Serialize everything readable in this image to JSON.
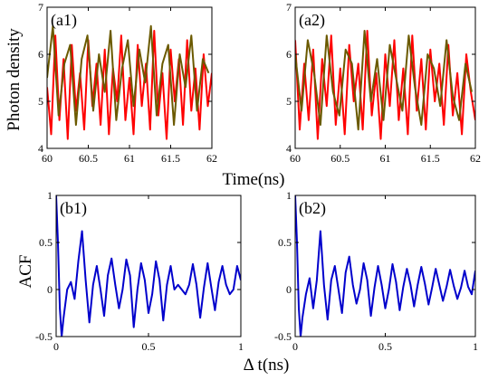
{
  "chart_data": [
    {
      "panel": "(a1)",
      "type": "line",
      "ylabel": "Photon density",
      "xlabel": "Time(ns)",
      "xlim": [
        60,
        62
      ],
      "ylim": [
        4,
        7
      ],
      "xticks": [
        60,
        60.5,
        61,
        61.5,
        62
      ],
      "xtick_labels": [
        "60",
        "60.5",
        "61",
        "61.5",
        "62"
      ],
      "yticks": [
        4,
        5,
        6,
        7
      ],
      "ytick_labels": [
        "4",
        "5",
        "6",
        "7"
      ],
      "series": [
        {
          "color": "#ff0000",
          "x": [
            60.0,
            60.05,
            60.1,
            60.15,
            60.2,
            60.25,
            60.3,
            60.35,
            60.4,
            60.45,
            60.5,
            60.55,
            60.6,
            60.65,
            60.7,
            60.75,
            60.8,
            60.85,
            60.9,
            60.95,
            61.0,
            61.05,
            61.1,
            61.15,
            61.2,
            61.25,
            61.3,
            61.35,
            61.4,
            61.45,
            61.5,
            61.55,
            61.6,
            61.65,
            61.7,
            61.75,
            61.8,
            61.85,
            61.9,
            61.95,
            62.0
          ],
          "y": [
            5.3,
            4.3,
            6.4,
            4.6,
            5.9,
            4.2,
            6.2,
            4.8,
            5.6,
            4.4,
            6.3,
            4.9,
            5.8,
            4.5,
            6.1,
            4.3,
            5.7,
            5.0,
            6.4,
            4.6,
            5.5,
            4.3,
            6.2,
            4.9,
            5.8,
            4.4,
            6.5,
            4.7,
            5.6,
            4.2,
            6.1,
            5.0,
            5.9,
            4.5,
            6.3,
            4.8,
            5.7,
            4.4,
            6.0,
            4.9,
            5.6
          ]
        },
        {
          "color": "#6b5a00",
          "x": [
            60.0,
            60.07,
            60.14,
            60.21,
            60.28,
            60.35,
            60.42,
            60.49,
            60.56,
            60.63,
            60.7,
            60.77,
            60.84,
            60.91,
            60.98,
            61.05,
            61.12,
            61.19,
            61.26,
            61.33,
            61.4,
            61.47,
            61.54,
            61.61,
            61.68,
            61.75,
            61.82,
            61.89,
            61.96
          ],
          "y": [
            5.5,
            6.6,
            4.7,
            5.8,
            6.2,
            4.5,
            5.9,
            6.4,
            4.8,
            6.0,
            5.2,
            6.5,
            4.6,
            5.7,
            6.3,
            4.9,
            6.1,
            5.4,
            6.6,
            4.7,
            5.8,
            6.2,
            4.5,
            6.0,
            5.3,
            6.4,
            4.8,
            5.9,
            5.6
          ]
        }
      ]
    },
    {
      "panel": "(a2)",
      "type": "line",
      "xlim": [
        60,
        62
      ],
      "ylim": [
        4,
        7
      ],
      "xticks": [
        60,
        60.5,
        61,
        61.5,
        62
      ],
      "xtick_labels": [
        "60",
        "60.5",
        "61",
        "61.5",
        "62"
      ],
      "yticks": [
        4,
        5,
        6,
        7
      ],
      "ytick_labels": [
        "4",
        "5",
        "6",
        "7"
      ],
      "series": [
        {
          "color": "#ff0000",
          "x": [
            60.0,
            60.05,
            60.1,
            60.15,
            60.2,
            60.25,
            60.3,
            60.35,
            60.4,
            60.45,
            60.5,
            60.55,
            60.6,
            60.65,
            60.7,
            60.75,
            60.8,
            60.85,
            60.9,
            60.95,
            61.0,
            61.05,
            61.1,
            61.15,
            61.2,
            61.25,
            61.3,
            61.35,
            61.4,
            61.45,
            61.5,
            61.55,
            61.6,
            61.65,
            61.7,
            61.75,
            61.8,
            61.85,
            61.9,
            61.95,
            62.0
          ],
          "y": [
            6.3,
            4.4,
            5.8,
            4.6,
            6.1,
            4.2,
            5.9,
            4.9,
            6.4,
            4.5,
            5.7,
            4.3,
            6.2,
            5.0,
            5.8,
            4.4,
            6.5,
            4.7,
            5.6,
            4.2,
            6.0,
            4.9,
            6.3,
            4.6,
            5.7,
            4.3,
            6.4,
            4.8,
            5.9,
            4.4,
            6.1,
            5.0,
            5.8,
            4.5,
            6.2,
            4.7,
            5.6,
            4.3,
            6.0,
            5.2,
            4.6
          ]
        },
        {
          "color": "#6b5a00",
          "x": [
            60.0,
            60.07,
            60.14,
            60.21,
            60.28,
            60.35,
            60.42,
            60.49,
            60.56,
            60.63,
            60.7,
            60.77,
            60.84,
            60.91,
            60.98,
            61.05,
            61.12,
            61.19,
            61.26,
            61.33,
            61.4,
            61.47,
            61.54,
            61.61,
            61.68,
            61.75,
            61.82,
            61.89,
            61.96
          ],
          "y": [
            6.0,
            4.8,
            6.3,
            5.6,
            4.5,
            6.4,
            5.2,
            4.7,
            6.1,
            5.8,
            4.4,
            6.5,
            5.0,
            5.9,
            4.6,
            6.2,
            5.5,
            4.8,
            6.4,
            5.3,
            4.5,
            6.0,
            5.7,
            4.9,
            6.3,
            5.1,
            4.6,
            5.8,
            5.2
          ]
        }
      ]
    },
    {
      "panel": "(b1)",
      "type": "line",
      "ylabel": "ACF",
      "xlabel": "Δ t(ns)",
      "xlim": [
        0,
        1
      ],
      "ylim": [
        -0.5,
        1
      ],
      "xticks": [
        0,
        0.5,
        1
      ],
      "xtick_labels": [
        "0",
        "0.5",
        "1"
      ],
      "yticks": [
        -0.5,
        0,
        0.5,
        1
      ],
      "ytick_labels": [
        "-0.5",
        "0",
        "0.5",
        "1"
      ],
      "series": [
        {
          "color": "#0000cc",
          "x": [
            0.0,
            0.01,
            0.02,
            0.03,
            0.04,
            0.06,
            0.08,
            0.1,
            0.12,
            0.14,
            0.16,
            0.18,
            0.2,
            0.22,
            0.24,
            0.26,
            0.28,
            0.3,
            0.32,
            0.34,
            0.36,
            0.38,
            0.4,
            0.42,
            0.44,
            0.46,
            0.48,
            0.5,
            0.52,
            0.54,
            0.56,
            0.58,
            0.6,
            0.62,
            0.64,
            0.66,
            0.68,
            0.7,
            0.72,
            0.74,
            0.76,
            0.78,
            0.8,
            0.82,
            0.84,
            0.86,
            0.88,
            0.9,
            0.92,
            0.94,
            0.96,
            0.98,
            1.0
          ],
          "y": [
            1.0,
            0.5,
            -0.2,
            -0.5,
            -0.3,
            0.0,
            0.08,
            -0.1,
            0.3,
            0.62,
            0.1,
            -0.35,
            0.05,
            0.25,
            0.0,
            -0.28,
            0.15,
            0.33,
            0.05,
            -0.2,
            0.0,
            0.32,
            0.15,
            -0.4,
            0.0,
            0.28,
            0.1,
            -0.25,
            -0.05,
            0.3,
            0.1,
            -0.33,
            0.05,
            0.25,
            0.0,
            0.05,
            0.0,
            -0.05,
            0.05,
            0.27,
            0.05,
            -0.3,
            0.02,
            0.28,
            0.02,
            -0.22,
            0.08,
            0.25,
            0.05,
            -0.05,
            0.0,
            0.25,
            0.1
          ]
        }
      ]
    },
    {
      "panel": "(b2)",
      "type": "line",
      "xlim": [
        0,
        1
      ],
      "ylim": [
        -0.5,
        1
      ],
      "xticks": [
        0,
        0.5,
        1
      ],
      "xtick_labels": [
        "0",
        "0.5",
        "1"
      ],
      "yticks": [
        -0.5,
        0,
        0.5,
        1
      ],
      "ytick_labels": [
        "-0.5",
        "0",
        "0.5",
        "1"
      ],
      "series": [
        {
          "color": "#0000cc",
          "x": [
            0.0,
            0.01,
            0.02,
            0.03,
            0.04,
            0.06,
            0.08,
            0.1,
            0.12,
            0.14,
            0.16,
            0.18,
            0.2,
            0.22,
            0.24,
            0.26,
            0.28,
            0.3,
            0.32,
            0.34,
            0.36,
            0.38,
            0.4,
            0.42,
            0.44,
            0.46,
            0.48,
            0.5,
            0.52,
            0.54,
            0.56,
            0.58,
            0.6,
            0.62,
            0.64,
            0.66,
            0.68,
            0.7,
            0.72,
            0.74,
            0.76,
            0.78,
            0.8,
            0.82,
            0.84,
            0.86,
            0.88,
            0.9,
            0.92,
            0.94,
            0.96,
            0.98,
            1.0
          ],
          "y": [
            1.0,
            0.5,
            -0.2,
            -0.5,
            -0.3,
            -0.05,
            0.12,
            -0.2,
            0.1,
            0.62,
            0.05,
            -0.32,
            0.1,
            0.25,
            0.0,
            -0.25,
            0.18,
            0.35,
            0.05,
            -0.15,
            0.0,
            0.28,
            0.1,
            -0.28,
            0.02,
            0.25,
            0.05,
            -0.2,
            0.0,
            0.27,
            0.08,
            -0.22,
            0.03,
            0.22,
            0.05,
            -0.18,
            0.05,
            0.24,
            0.06,
            -0.16,
            0.02,
            0.22,
            0.05,
            -0.12,
            0.03,
            0.21,
            0.04,
            -0.1,
            0.02,
            0.2,
            0.03,
            -0.05,
            0.2
          ]
        }
      ]
    }
  ]
}
